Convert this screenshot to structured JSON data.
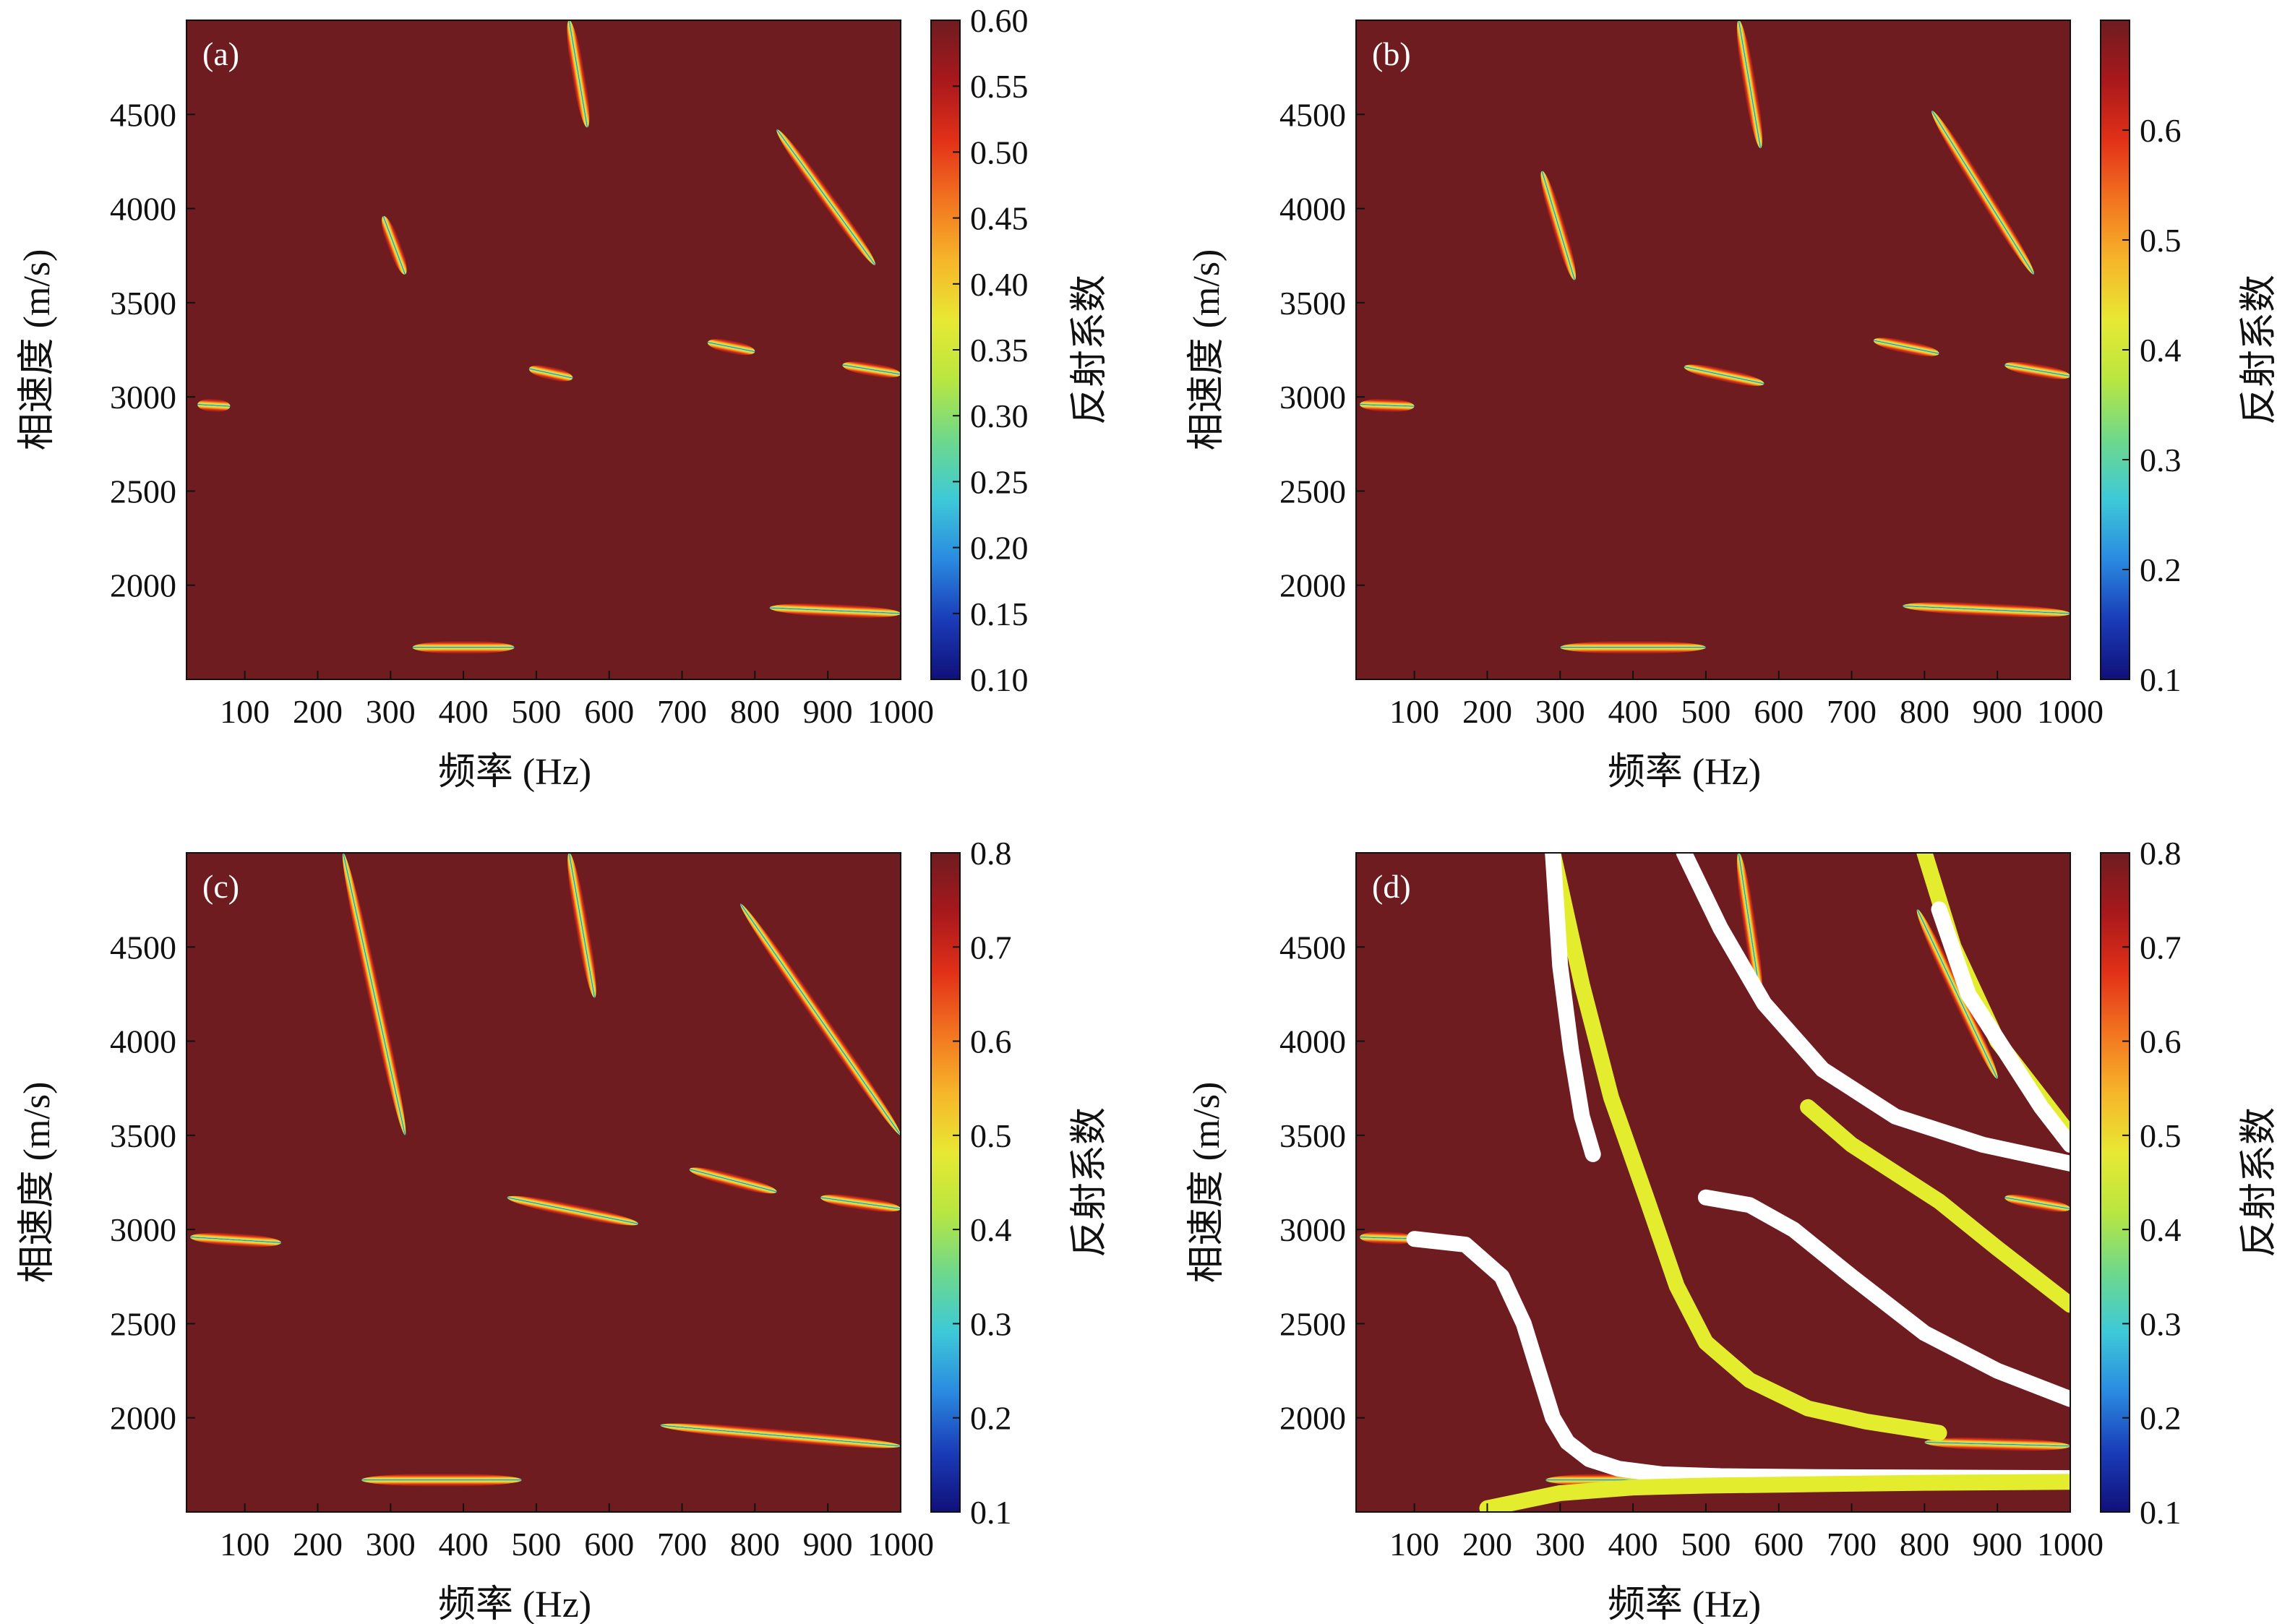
{
  "colormap": [
    "#10107a",
    "#1a3cb8",
    "#2a8ae0",
    "#3ec9d8",
    "#6fd88a",
    "#b9e640",
    "#e8e833",
    "#f6b52a",
    "#f27420",
    "#e23018",
    "#a8181c",
    "#6e1c20"
  ],
  "background_color": "#6e1c20",
  "highlight_colors": {
    "white": "#ffffff",
    "yellow": "#e4ec2e"
  },
  "chart_data": [
    {
      "type": "heatmap",
      "panel_label": "(a)",
      "xlabel": "频率 (Hz)",
      "ylabel": "相速度 (m/s)",
      "colorbar_label": "反射系数",
      "xlim": [
        20,
        1000
      ],
      "ylim": [
        1500,
        5000
      ],
      "xticks": [
        100,
        200,
        300,
        400,
        500,
        600,
        700,
        800,
        900,
        1000
      ],
      "yticks": [
        2000,
        2500,
        3000,
        3500,
        4000,
        4500
      ],
      "colorbar_range": [
        0.1,
        0.6
      ],
      "colorbar_ticks": [
        "0.10",
        "0.15",
        "0.20",
        "0.25",
        "0.30",
        "0.35",
        "0.40",
        "0.45",
        "0.50",
        "0.55",
        "0.60"
      ],
      "features": [
        {
          "x": [
            35,
            80
          ],
          "y": [
            2960,
            2950
          ]
        },
        {
          "x": [
            290,
            320
          ],
          "y": [
            3960,
            3650
          ]
        },
        {
          "x": [
            545,
            570
          ],
          "y": [
            5000,
            4430
          ]
        },
        {
          "x": [
            490,
            550
          ],
          "y": [
            3150,
            3100
          ]
        },
        {
          "x": [
            735,
            800
          ],
          "y": [
            3290,
            3240
          ]
        },
        {
          "x": [
            830,
            965
          ],
          "y": [
            4420,
            3700
          ]
        },
        {
          "x": [
            920,
            1000
          ],
          "y": [
            3170,
            3120
          ]
        },
        {
          "x": [
            820,
            1000
          ],
          "y": [
            1880,
            1850
          ]
        },
        {
          "x": [
            330,
            470
          ],
          "y": [
            1670,
            1670
          ]
        }
      ]
    },
    {
      "type": "heatmap",
      "panel_label": "(b)",
      "xlabel": "频率 (Hz)",
      "ylabel": "相速度 (m/s)",
      "colorbar_label": "反射系数",
      "xlim": [
        20,
        1000
      ],
      "ylim": [
        1500,
        5000
      ],
      "xticks": [
        100,
        200,
        300,
        400,
        500,
        600,
        700,
        800,
        900,
        1000
      ],
      "yticks": [
        2000,
        2500,
        3000,
        3500,
        4000,
        4500
      ],
      "colorbar_range": [
        0.1,
        0.7
      ],
      "colorbar_ticks": [
        "0.1",
        "0.2",
        "0.3",
        "0.4",
        "0.5",
        "0.6"
      ],
      "features": [
        {
          "x": [
            25,
            100
          ],
          "y": [
            2960,
            2950
          ]
        },
        {
          "x": [
            275,
            320
          ],
          "y": [
            4200,
            3620
          ]
        },
        {
          "x": [
            545,
            575
          ],
          "y": [
            5000,
            4320
          ]
        },
        {
          "x": [
            470,
            580
          ],
          "y": [
            3160,
            3070
          ]
        },
        {
          "x": [
            730,
            820
          ],
          "y": [
            3300,
            3230
          ]
        },
        {
          "x": [
            810,
            950
          ],
          "y": [
            4520,
            3650
          ]
        },
        {
          "x": [
            910,
            1000
          ],
          "y": [
            3170,
            3110
          ]
        },
        {
          "x": [
            770,
            1000
          ],
          "y": [
            1890,
            1850
          ]
        },
        {
          "x": [
            300,
            500
          ],
          "y": [
            1670,
            1670
          ]
        }
      ]
    },
    {
      "type": "heatmap",
      "panel_label": "(c)",
      "xlabel": "频率 (Hz)",
      "ylabel": "相速度 (m/s)",
      "colorbar_label": "反射系数",
      "xlim": [
        20,
        1000
      ],
      "ylim": [
        1500,
        5000
      ],
      "xticks": [
        100,
        200,
        300,
        400,
        500,
        600,
        700,
        800,
        900,
        1000
      ],
      "yticks": [
        2000,
        2500,
        3000,
        3500,
        4000,
        4500
      ],
      "colorbar_range": [
        0.1,
        0.8
      ],
      "colorbar_ticks": [
        "0.1",
        "0.2",
        "0.3",
        "0.4",
        "0.5",
        "0.6",
        "0.7",
        "0.8"
      ],
      "features": [
        {
          "x": [
            25,
            150
          ],
          "y": [
            2960,
            2930
          ]
        },
        {
          "x": [
            235,
            320
          ],
          "y": [
            5000,
            3500
          ]
        },
        {
          "x": [
            545,
            580
          ],
          "y": [
            5000,
            4230
          ]
        },
        {
          "x": [
            460,
            640
          ],
          "y": [
            3170,
            3030
          ]
        },
        {
          "x": [
            710,
            830
          ],
          "y": [
            3320,
            3200
          ]
        },
        {
          "x": [
            780,
            1000
          ],
          "y": [
            4730,
            3500
          ]
        },
        {
          "x": [
            890,
            1000
          ],
          "y": [
            3170,
            3110
          ]
        },
        {
          "x": [
            670,
            1000
          ],
          "y": [
            1960,
            1850
          ]
        },
        {
          "x": [
            260,
            480
          ],
          "y": [
            1670,
            1670
          ]
        }
      ]
    },
    {
      "type": "heatmap",
      "panel_label": "(d)",
      "xlabel": "频率 (Hz)",
      "ylabel": "相速度 (m/s)",
      "colorbar_label": "反射系数",
      "xlim": [
        20,
        1000
      ],
      "ylim": [
        1500,
        5000
      ],
      "xticks": [
        100,
        200,
        300,
        400,
        500,
        600,
        700,
        800,
        900,
        1000
      ],
      "yticks": [
        2000,
        2500,
        3000,
        3500,
        4000,
        4500
      ],
      "colorbar_range": [
        0.1,
        0.8
      ],
      "colorbar_ticks": [
        "0.1",
        "0.2",
        "0.3",
        "0.4",
        "0.5",
        "0.6",
        "0.7",
        "0.8"
      ],
      "features": [
        {
          "x": [
            25,
            100
          ],
          "y": [
            2960,
            2950
          ]
        },
        {
          "x": [
            545,
            575
          ],
          "y": [
            5000,
            4230
          ]
        },
        {
          "x": [
            790,
            900
          ],
          "y": [
            4700,
            3800
          ]
        },
        {
          "x": [
            910,
            1000
          ],
          "y": [
            3170,
            3110
          ]
        },
        {
          "x": [
            800,
            1000
          ],
          "y": [
            1870,
            1850
          ]
        },
        {
          "x": [
            280,
            480
          ],
          "y": [
            1670,
            1670
          ]
        }
      ],
      "dispersion_curves": [
        {
          "color": "white",
          "x": [
            100,
            170,
            220,
            250,
            270,
            290,
            310,
            340,
            380,
            440,
            520,
            650,
            1000
          ],
          "y": [
            2950,
            2920,
            2750,
            2500,
            2250,
            2000,
            1870,
            1780,
            1730,
            1700,
            1690,
            1685,
            1680
          ]
        },
        {
          "color": "yellow",
          "x": [
            200,
            300,
            400,
            500,
            600,
            700,
            800,
            1000
          ],
          "y": [
            1520,
            1600,
            1630,
            1640,
            1645,
            1650,
            1655,
            1660
          ]
        },
        {
          "color": "yellow",
          "x": [
            290,
            330,
            370,
            420,
            460,
            500,
            560,
            640,
            720,
            820
          ],
          "y": [
            5000,
            4300,
            3700,
            3150,
            2700,
            2400,
            2200,
            2050,
            1980,
            1920
          ]
        },
        {
          "color": "white",
          "x": [
            290,
            300,
            315,
            330,
            345
          ],
          "y": [
            5000,
            4400,
            3950,
            3600,
            3400
          ]
        },
        {
          "color": "white",
          "x": [
            500,
            560,
            620,
            700,
            800,
            900,
            1000
          ],
          "y": [
            3170,
            3130,
            3000,
            2750,
            2450,
            2250,
            2100
          ]
        },
        {
          "color": "white",
          "x": [
            470,
            520,
            580,
            660,
            760,
            880,
            1000
          ],
          "y": [
            5000,
            4600,
            4200,
            3850,
            3600,
            3450,
            3350
          ]
        },
        {
          "color": "yellow",
          "x": [
            640,
            700,
            760,
            820,
            900,
            1000
          ],
          "y": [
            3650,
            3450,
            3300,
            3150,
            2900,
            2600
          ]
        },
        {
          "color": "yellow",
          "x": [
            800,
            840,
            900,
            960,
            1000
          ],
          "y": [
            5000,
            4500,
            4000,
            3700,
            3500
          ]
        },
        {
          "color": "white",
          "x": [
            820,
            860,
            910,
            960,
            1000
          ],
          "y": [
            4700,
            4250,
            3950,
            3650,
            3450
          ]
        }
      ]
    }
  ]
}
